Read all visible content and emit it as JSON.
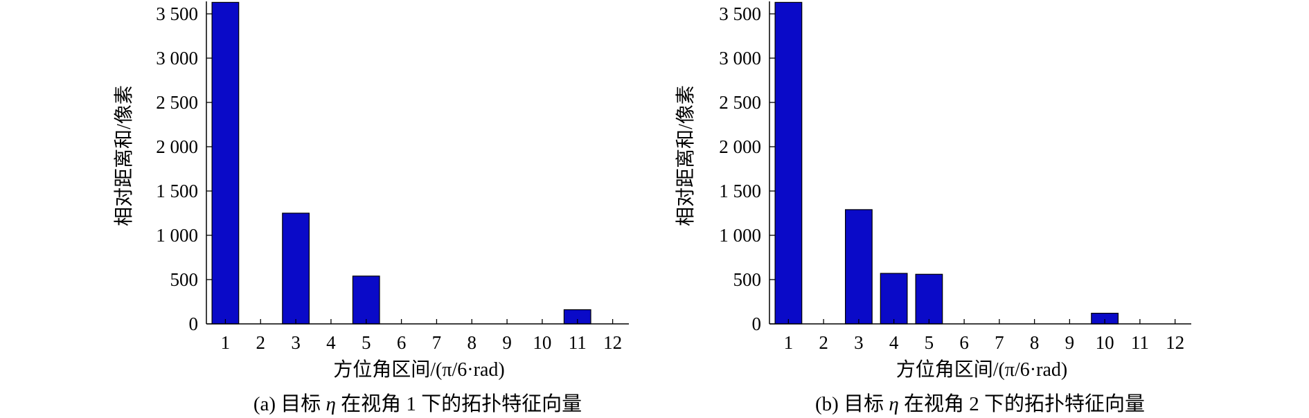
{
  "chart_data": [
    {
      "type": "bar",
      "panel_label": "(a)",
      "caption_pre": "(a) 目标",
      "caption_var": "η",
      "caption_post": "在视角 1 下的拓扑特征向量",
      "xlabel": "方位角区间/(π/6·rad)",
      "ylabel": "相对距离和/像素",
      "categories": [
        "1",
        "2",
        "3",
        "4",
        "5",
        "6",
        "7",
        "8",
        "9",
        "10",
        "11",
        "12"
      ],
      "values": [
        3630,
        0,
        1250,
        0,
        540,
        0,
        0,
        0,
        0,
        0,
        160,
        0
      ],
      "yticks": [
        0,
        500,
        1000,
        1500,
        2000,
        2500,
        3000,
        3500
      ],
      "ytick_labels": [
        "0",
        "500",
        "1 000",
        "1 500",
        "2 000",
        "2 500",
        "3 000",
        "3 500"
      ],
      "ylim": [
        0,
        3650
      ],
      "bar_color": "#0a0ac8",
      "grid": false
    },
    {
      "type": "bar",
      "panel_label": "(b)",
      "caption_pre": "(b) 目标",
      "caption_var": "η",
      "caption_post": "在视角 2 下的拓扑特征向量",
      "xlabel": "方位角区间/(π/6·rad)",
      "ylabel": "相对距离和/像素",
      "categories": [
        "1",
        "2",
        "3",
        "4",
        "5",
        "6",
        "7",
        "8",
        "9",
        "10",
        "11",
        "12"
      ],
      "values": [
        3630,
        0,
        1290,
        570,
        560,
        0,
        0,
        0,
        0,
        120,
        0,
        0
      ],
      "yticks": [
        0,
        500,
        1000,
        1500,
        2000,
        2500,
        3000,
        3500
      ],
      "ytick_labels": [
        "0",
        "500",
        "1 000",
        "1 500",
        "2 000",
        "2 500",
        "3 000",
        "3 500"
      ],
      "ylim": [
        0,
        3650
      ],
      "bar_color": "#0a0ac8",
      "grid": false
    }
  ]
}
